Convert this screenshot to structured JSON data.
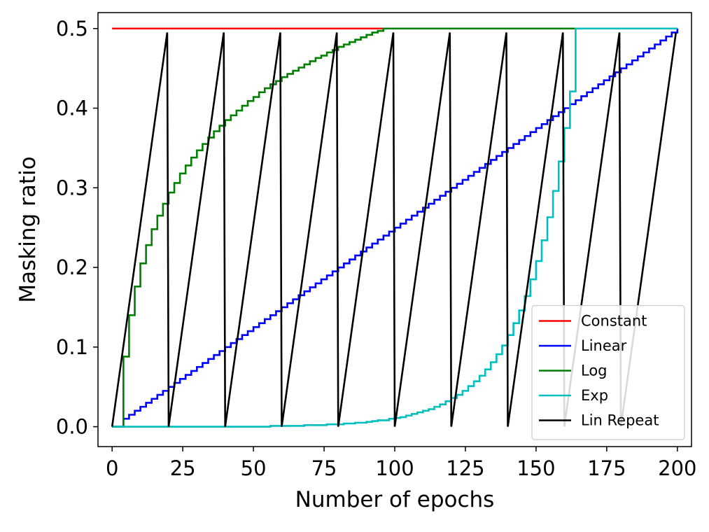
{
  "chart_data": {
    "type": "line",
    "title": "",
    "xlabel": "Number of epochs",
    "ylabel": "Masking ratio",
    "xlim": [
      -5,
      205
    ],
    "ylim": [
      -0.025,
      0.52
    ],
    "xticks": [
      0,
      25,
      50,
      75,
      100,
      125,
      150,
      175,
      200
    ],
    "xtick_labels": [
      "0",
      "25",
      "50",
      "75",
      "100",
      "125",
      "150",
      "175",
      "200"
    ],
    "yticks": [
      0.0,
      0.1,
      0.2,
      0.3,
      0.4,
      0.5
    ],
    "ytick_labels": [
      "0.0",
      "0.1",
      "0.2",
      "0.3",
      "0.4",
      "0.5"
    ],
    "grid": false,
    "legend_position": "lower-right",
    "series": [
      {
        "name": "Constant",
        "color": "#ff0000",
        "style": "line",
        "x": [
          0,
          200
        ],
        "y": [
          0.5,
          0.5
        ]
      },
      {
        "name": "Linear",
        "color": "#0000ff",
        "style": "step",
        "x": [
          0,
          2,
          4,
          6,
          8,
          10,
          12,
          14,
          16,
          18,
          20,
          22,
          24,
          26,
          28,
          30,
          32,
          34,
          36,
          38,
          40,
          42,
          44,
          46,
          48,
          50,
          52,
          54,
          56,
          58,
          60,
          62,
          64,
          66,
          68,
          70,
          72,
          74,
          76,
          78,
          80,
          82,
          84,
          86,
          88,
          90,
          92,
          94,
          96,
          98,
          100,
          102,
          104,
          106,
          108,
          110,
          112,
          114,
          116,
          118,
          120,
          122,
          124,
          126,
          128,
          130,
          132,
          134,
          136,
          138,
          140,
          142,
          144,
          146,
          148,
          150,
          152,
          154,
          156,
          158,
          160,
          162,
          164,
          166,
          168,
          170,
          172,
          174,
          176,
          178,
          180,
          182,
          184,
          186,
          188,
          190,
          192,
          194,
          196,
          198,
          200
        ],
        "y": [
          0.0,
          0.0,
          0.01,
          0.015,
          0.02,
          0.025,
          0.03,
          0.035,
          0.04,
          0.045,
          0.05,
          0.055,
          0.06,
          0.065,
          0.07,
          0.075,
          0.08,
          0.085,
          0.09,
          0.095,
          0.1,
          0.105,
          0.11,
          0.115,
          0.12,
          0.125,
          0.13,
          0.135,
          0.14,
          0.145,
          0.15,
          0.155,
          0.16,
          0.165,
          0.17,
          0.175,
          0.18,
          0.185,
          0.19,
          0.195,
          0.2,
          0.205,
          0.21,
          0.215,
          0.22,
          0.225,
          0.23,
          0.235,
          0.24,
          0.245,
          0.25,
          0.255,
          0.26,
          0.265,
          0.27,
          0.275,
          0.28,
          0.285,
          0.29,
          0.295,
          0.3,
          0.305,
          0.31,
          0.315,
          0.32,
          0.325,
          0.33,
          0.335,
          0.34,
          0.345,
          0.35,
          0.355,
          0.36,
          0.365,
          0.37,
          0.375,
          0.38,
          0.385,
          0.39,
          0.395,
          0.4,
          0.405,
          0.41,
          0.415,
          0.42,
          0.425,
          0.43,
          0.435,
          0.44,
          0.445,
          0.45,
          0.455,
          0.46,
          0.465,
          0.47,
          0.475,
          0.48,
          0.485,
          0.49,
          0.495,
          0.5
        ]
      },
      {
        "name": "Log",
        "color": "#008000",
        "style": "step",
        "x": [
          0,
          2,
          4,
          6,
          8,
          10,
          12,
          14,
          16,
          18,
          20,
          22,
          24,
          26,
          28,
          30,
          32,
          34,
          36,
          38,
          40,
          42,
          44,
          46,
          48,
          50,
          52,
          54,
          56,
          58,
          60,
          62,
          64,
          66,
          68,
          70,
          72,
          74,
          76,
          78,
          80,
          82,
          84,
          86,
          88,
          90,
          92,
          94,
          96,
          98,
          100,
          102,
          104,
          106,
          108,
          110,
          112,
          114,
          116,
          118,
          120,
          122,
          124,
          126,
          128,
          130,
          132,
          134,
          136,
          138,
          140,
          142,
          144,
          146,
          148,
          150,
          152,
          154,
          156,
          158,
          160,
          162,
          164,
          166,
          168,
          170,
          172,
          174,
          176,
          178,
          180,
          182,
          184,
          186,
          188,
          190,
          192,
          194,
          196,
          198,
          200
        ],
        "y": [
          0.0,
          0.0,
          0.088,
          0.14,
          0.176,
          0.205,
          0.228,
          0.248,
          0.265,
          0.28,
          0.294,
          0.306,
          0.318,
          0.328,
          0.338,
          0.347,
          0.355,
          0.363,
          0.371,
          0.378,
          0.385,
          0.391,
          0.397,
          0.403,
          0.409,
          0.414,
          0.42,
          0.425,
          0.43,
          0.434,
          0.439,
          0.443,
          0.447,
          0.451,
          0.455,
          0.459,
          0.463,
          0.466,
          0.47,
          0.473,
          0.477,
          0.48,
          0.483,
          0.486,
          0.489,
          0.492,
          0.495,
          0.497,
          0.5,
          0.5,
          0.5,
          0.5,
          0.5,
          0.5,
          0.5,
          0.5,
          0.5,
          0.5,
          0.5,
          0.5,
          0.5,
          0.5,
          0.5,
          0.5,
          0.5,
          0.5,
          0.5,
          0.5,
          0.5,
          0.5,
          0.5,
          0.5,
          0.5,
          0.5,
          0.5,
          0.5,
          0.5,
          0.5,
          0.5,
          0.5,
          0.5,
          0.5,
          0.5,
          0.5,
          0.5,
          0.5,
          0.5,
          0.5,
          0.5,
          0.5,
          0.5,
          0.5,
          0.5,
          0.5,
          0.5,
          0.5,
          0.5,
          0.5,
          0.5,
          0.5,
          0.5
        ]
      },
      {
        "name": "Exp",
        "color": "#00bfbf",
        "style": "step",
        "x": [
          0,
          2,
          4,
          6,
          8,
          10,
          12,
          14,
          16,
          18,
          20,
          22,
          24,
          26,
          28,
          30,
          32,
          34,
          36,
          38,
          40,
          42,
          44,
          46,
          48,
          50,
          52,
          54,
          56,
          58,
          60,
          62,
          64,
          66,
          68,
          70,
          72,
          74,
          76,
          78,
          80,
          82,
          84,
          86,
          88,
          90,
          92,
          94,
          96,
          98,
          100,
          102,
          104,
          106,
          108,
          110,
          112,
          114,
          116,
          118,
          120,
          122,
          124,
          126,
          128,
          130,
          132,
          134,
          136,
          138,
          140,
          142,
          144,
          146,
          148,
          150,
          152,
          154,
          156,
          158,
          160,
          162,
          164,
          166,
          168,
          170,
          172,
          174,
          176,
          178,
          180,
          182,
          184,
          186,
          188,
          190,
          192,
          194,
          196,
          198,
          200
        ],
        "y": [
          0.0,
          0.0,
          0.0,
          0.0,
          0.0,
          0.0,
          0.0,
          0.0,
          0.0,
          0.0,
          0.0,
          0.0,
          0.0,
          0.0,
          0.0,
          0.0,
          0.0,
          0.0,
          0.0,
          0.0,
          0.0,
          0.0,
          0.0,
          0.0,
          0.0,
          0.0,
          0.0,
          0.0,
          0.001,
          0.001,
          0.001,
          0.001,
          0.001,
          0.001,
          0.002,
          0.002,
          0.002,
          0.002,
          0.003,
          0.003,
          0.003,
          0.004,
          0.004,
          0.005,
          0.005,
          0.006,
          0.007,
          0.008,
          0.008,
          0.01,
          0.011,
          0.012,
          0.014,
          0.016,
          0.018,
          0.02,
          0.022,
          0.025,
          0.028,
          0.032,
          0.036,
          0.04,
          0.045,
          0.051,
          0.057,
          0.064,
          0.072,
          0.081,
          0.091,
          0.102,
          0.115,
          0.13,
          0.146,
          0.164,
          0.185,
          0.208,
          0.234,
          0.263,
          0.296,
          0.333,
          0.375,
          0.421,
          0.5,
          0.5,
          0.5,
          0.5,
          0.5,
          0.5,
          0.5,
          0.5,
          0.5,
          0.5,
          0.5,
          0.5,
          0.5,
          0.5,
          0.5,
          0.5,
          0.5,
          0.5,
          0.5
        ]
      },
      {
        "name": "Lin Repeat",
        "color": "#000000",
        "style": "line",
        "x": [
          0,
          19.5,
          20,
          39.5,
          40,
          59.5,
          60,
          79.5,
          80,
          99.5,
          100,
          119.5,
          120,
          139.5,
          140,
          159.5,
          160,
          179.5,
          180,
          199.5
        ],
        "y": [
          0.0,
          0.495,
          0.0,
          0.495,
          0.0,
          0.495,
          0.0,
          0.495,
          0.0,
          0.495,
          0.0,
          0.495,
          0.0,
          0.495,
          0.0,
          0.495,
          0.0,
          0.495,
          0.0,
          0.495
        ]
      }
    ]
  }
}
